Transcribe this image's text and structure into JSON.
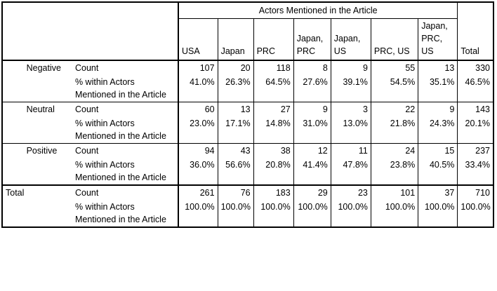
{
  "header": {
    "super_title": "Actors Mentioned in the Article",
    "columns": [
      "USA",
      "Japan",
      "PRC",
      "Japan,\nPRC",
      "Japan,\nUS",
      "PRC, US",
      "Japan,\nPRC, US",
      "Total"
    ]
  },
  "rows": [
    {
      "group": "Negative",
      "count_label": "Count",
      "pct_label": "% within Actors Mentioned in the Article",
      "counts": [
        "107",
        "20",
        "118",
        "8",
        "9",
        "55",
        "13",
        "330"
      ],
      "pcts": [
        "41.0%",
        "26.3%",
        "64.5%",
        "27.6%",
        "39.1%",
        "54.5%",
        "35.1%",
        "46.5%"
      ]
    },
    {
      "group": "Neutral",
      "count_label": "Count",
      "pct_label": "% within Actors Mentioned in the Article",
      "counts": [
        "60",
        "13",
        "27",
        "9",
        "3",
        "22",
        "9",
        "143"
      ],
      "pcts": [
        "23.0%",
        "17.1%",
        "14.8%",
        "31.0%",
        "13.0%",
        "21.8%",
        "24.3%",
        "20.1%"
      ]
    },
    {
      "group": "Positive",
      "count_label": "Count",
      "pct_label": "% within Actors Mentioned in the Article",
      "counts": [
        "94",
        "43",
        "38",
        "12",
        "11",
        "24",
        "15",
        "237"
      ],
      "pcts": [
        "36.0%",
        "56.6%",
        "20.8%",
        "41.4%",
        "47.8%",
        "23.8%",
        "40.5%",
        "33.4%"
      ]
    }
  ],
  "total": {
    "label": "Total",
    "count_label": "Count",
    "pct_label": "% within Actors Mentioned in the Article",
    "counts": [
      "261",
      "76",
      "183",
      "29",
      "23",
      "101",
      "37",
      "710"
    ],
    "pcts": [
      "100.0%",
      "100.0%",
      "100.0%",
      "100.0%",
      "100.0%",
      "100.0%",
      "100.0%",
      "100.0%"
    ]
  }
}
